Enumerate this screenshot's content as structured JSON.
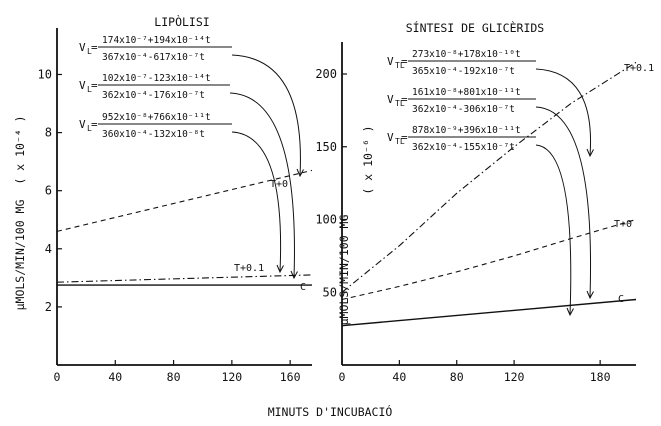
{
  "footer_xlabel": "MINUTS D'INCUBACIÓ",
  "chart_data": [
    {
      "type": "line",
      "title": "LIPÒLISI",
      "ylabel": "μMOLS/MIN/100 MG",
      "yunit": "( x 10⁻⁴ )",
      "xlabel": "",
      "xlim": [
        0,
        175
      ],
      "ylim": [
        0,
        11.6
      ],
      "xticks": [
        0,
        40,
        80,
        120,
        160
      ],
      "yticks": [
        2,
        4,
        6,
        8,
        10
      ],
      "grid": false,
      "series": [
        {
          "name": "T+0",
          "style": "dashed",
          "x": [
            0,
            175
          ],
          "y": [
            4.6,
            6.7
          ]
        },
        {
          "name": "T+0.1",
          "style": "dashdot",
          "x": [
            0,
            175
          ],
          "y": [
            2.85,
            3.1
          ]
        },
        {
          "name": "C",
          "style": "solid",
          "x": [
            0,
            175
          ],
          "y": [
            2.75,
            2.75
          ]
        }
      ],
      "equations": [
        {
          "lhs": "V",
          "sub": "L",
          "num": "174x10⁻⁷+194x10⁻¹⁴t",
          "den": "367x10⁻⁴-617x10⁻⁷t"
        },
        {
          "lhs": "V",
          "sub": "L",
          "num": "102x10⁻⁷-123x10⁻¹⁴t",
          "den": "362x10⁻⁴-176x10⁻⁷t"
        },
        {
          "lhs": "V",
          "sub": "L",
          "num": "952x10⁻⁸+766x10⁻¹¹t",
          "den": "360x10⁻⁴-132x10⁻⁸t"
        }
      ]
    },
    {
      "type": "line",
      "title": "SÍNTESI DE GLICÈRIDS",
      "ylabel": "μMOLS/MIN/100 MG",
      "yunit": "( x 10⁻⁶ )",
      "xlabel": "",
      "xlim": [
        0,
        205
      ],
      "ylim": [
        0,
        222
      ],
      "xticks": [
        0,
        40,
        80,
        120,
        180
      ],
      "yticks": [
        50,
        100,
        150,
        200
      ],
      "grid": false,
      "series": [
        {
          "name": "T+0.1",
          "style": "dashdot",
          "x": [
            0,
            40,
            80,
            120,
            160,
            205
          ],
          "y": [
            50,
            82,
            118,
            150,
            180,
            208
          ]
        },
        {
          "name": "T+0",
          "style": "dashed",
          "x": [
            0,
            40,
            80,
            120,
            160,
            205
          ],
          "y": [
            45,
            54,
            64,
            75,
            87,
            100
          ]
        },
        {
          "name": "C",
          "style": "solid",
          "x": [
            0,
            205
          ],
          "y": [
            27,
            45
          ]
        }
      ],
      "equations": [
        {
          "lhs": "V",
          "sub": "TL",
          "num": "273x10⁻⁸+178x10⁻¹⁰t",
          "den": "365x10⁻⁴-192x10⁻⁷t"
        },
        {
          "lhs": "V",
          "sub": "TL",
          "num": "161x10⁻⁸+801x10⁻¹¹t",
          "den": "362x10⁻⁴-306x10⁻⁷t"
        },
        {
          "lhs": "V",
          "sub": "TL",
          "num": "878x10⁻⁹+396x10⁻¹¹t",
          "den": "362x10⁻⁴-155x10⁻⁷t"
        }
      ]
    }
  ]
}
